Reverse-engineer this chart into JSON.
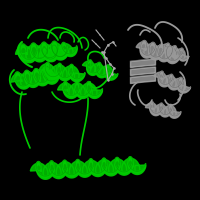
{
  "background_color": "#000000",
  "green": "#00cc00",
  "green_dark": "#009900",
  "green_edge": "#004400",
  "gray": "#999999",
  "gray_dark": "#666666",
  "gray_edge": "#333333",
  "gray_light": "#bbbbbb",
  "ligand_color": "#aaaaaa",
  "figsize": [
    2.0,
    2.0
  ],
  "dpi": 100
}
